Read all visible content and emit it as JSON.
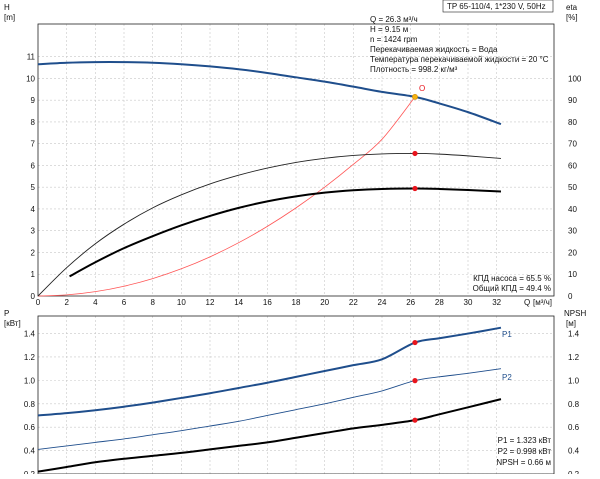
{
  "chart_data": [
    {
      "type": "line",
      "name": "pump-curve",
      "header": "TP 65-110/4, 1*230 V, 50Hz",
      "y_left_label": "H",
      "y_left_unit": "[m]",
      "y_right_label": "eta",
      "y_right_unit": "[%]",
      "x_label": "Q",
      "x_unit": "[м³/ч]",
      "x_ticks": [
        0,
        2,
        4,
        6,
        8,
        10,
        12,
        14,
        16,
        18,
        20,
        22,
        24,
        26,
        28,
        30,
        32
      ],
      "y_left_ticks": [
        0,
        1,
        2,
        3,
        4,
        5,
        6,
        7,
        8,
        9,
        10,
        11
      ],
      "y_right_ticks": [
        0,
        10,
        20,
        30,
        40,
        50,
        60,
        70,
        80,
        90,
        100
      ],
      "xlim": [
        0,
        36
      ],
      "ylim_left": [
        0,
        12.5
      ],
      "info_lines": [
        "Q = 26.3 м³/ч",
        "H = 9.15 м",
        "n = 1424 rpm",
        "Перекачиваемая жидкость = Вода",
        "Температура перекачиваемой жидкости = 20 °C",
        "Плотность = 998.2 кг/м³"
      ],
      "efficiency_lines": [
        "КПД насоса = 65.5 %",
        "Общий КПД = 49.4 %"
      ],
      "operating_point_label": "O",
      "series": [
        {
          "color": "#1f4e8c",
          "axis": "left",
          "x": [
            0,
            2,
            4,
            6,
            8,
            10,
            12,
            14,
            16,
            18,
            20,
            22,
            24,
            26.3,
            28,
            30,
            32.3
          ],
          "y": [
            10.65,
            10.72,
            10.75,
            10.75,
            10.72,
            10.65,
            10.55,
            10.42,
            10.25,
            10.05,
            9.85,
            9.62,
            9.38,
            9.15,
            8.85,
            8.45,
            7.9
          ]
        },
        {
          "color": "#ff5555",
          "axis": "left",
          "x": [
            0,
            2,
            4,
            6,
            8,
            10,
            12,
            14,
            16,
            18,
            20,
            22,
            24,
            26.3
          ],
          "y": [
            0,
            0.05,
            0.2,
            0.45,
            0.8,
            1.25,
            1.8,
            2.45,
            3.2,
            4.05,
            5.0,
            6.05,
            7.2,
            9.15
          ]
        },
        {
          "color": "#222222",
          "axis": "right",
          "x": [
            0,
            2,
            4,
            6,
            8,
            10,
            12,
            14,
            16,
            18,
            20,
            22,
            24,
            26.3,
            28,
            30,
            32.3
          ],
          "y": [
            0,
            13,
            24,
            33,
            40.5,
            46.5,
            51.5,
            55.5,
            58.8,
            61.4,
            63.3,
            64.6,
            65.3,
            65.5,
            65.2,
            64.4,
            63.2
          ]
        },
        {
          "color": "#000000",
          "axis": "right",
          "x": [
            2.2,
            4,
            6,
            8,
            10,
            12,
            14,
            16,
            18,
            20,
            22,
            24,
            26.3,
            28,
            30,
            32.3
          ],
          "y": [
            9,
            15.5,
            22,
            27.5,
            32.5,
            36.8,
            40.5,
            43.5,
            45.8,
            47.5,
            48.6,
            49.2,
            49.4,
            49.2,
            48.7,
            48.0
          ]
        }
      ],
      "points": [
        {
          "x": 26.3,
          "y": 9.15,
          "axis": "left",
          "color": "#f5b30f"
        },
        {
          "x": 26.3,
          "y": 65.5,
          "axis": "right",
          "color": "#e8141c"
        },
        {
          "x": 26.3,
          "y": 49.4,
          "axis": "right",
          "color": "#e8141c"
        }
      ]
    },
    {
      "type": "line",
      "name": "power-curve",
      "y_left_label": "P",
      "y_left_unit": "[кВт]",
      "y_right_label": "NPSH",
      "y_right_unit": "[м]",
      "y_ticks": [
        "0.2",
        "0.4",
        "0.6",
        "0.8",
        "1.0",
        "1.2",
        "1.4"
      ],
      "ylim": [
        0.2,
        1.55
      ],
      "info_lines": [
        "P1 = 1.323 кВт",
        "P2 = 0.998 кВт",
        "NPSH = 0.66 м"
      ],
      "series": [
        {
          "name": "P1",
          "color": "#1f4e8c",
          "x": [
            0,
            2,
            4,
            6,
            8,
            10,
            12,
            14,
            16,
            18,
            20,
            22,
            24,
            26.3,
            28,
            30,
            32.3
          ],
          "y": [
            0.7,
            0.72,
            0.745,
            0.775,
            0.81,
            0.85,
            0.89,
            0.935,
            0.98,
            1.03,
            1.08,
            1.13,
            1.18,
            1.323,
            1.36,
            1.4,
            1.45
          ]
        },
        {
          "name": "P2",
          "color": "#1f4e8c",
          "x": [
            0,
            2,
            4,
            6,
            8,
            10,
            12,
            14,
            16,
            18,
            20,
            22,
            24,
            26.3,
            28,
            30,
            32.3
          ],
          "y": [
            0.41,
            0.44,
            0.47,
            0.5,
            0.535,
            0.57,
            0.61,
            0.65,
            0.7,
            0.75,
            0.8,
            0.855,
            0.91,
            0.998,
            1.03,
            1.06,
            1.1
          ]
        },
        {
          "color": "#000000",
          "x": [
            0,
            2,
            4,
            6,
            8,
            10,
            12,
            14,
            16,
            18,
            20,
            22,
            24,
            26.3,
            28,
            30,
            32.3
          ],
          "y": [
            0.22,
            0.26,
            0.3,
            0.33,
            0.355,
            0.38,
            0.41,
            0.44,
            0.47,
            0.51,
            0.55,
            0.59,
            0.62,
            0.66,
            0.71,
            0.77,
            0.84
          ]
        }
      ],
      "points": [
        {
          "x": 26.3,
          "y": 1.323,
          "color": "#e8141c"
        },
        {
          "x": 26.3,
          "y": 0.998,
          "color": "#e8141c"
        },
        {
          "x": 26.3,
          "y": 0.66,
          "color": "#e8141c"
        }
      ]
    }
  ]
}
